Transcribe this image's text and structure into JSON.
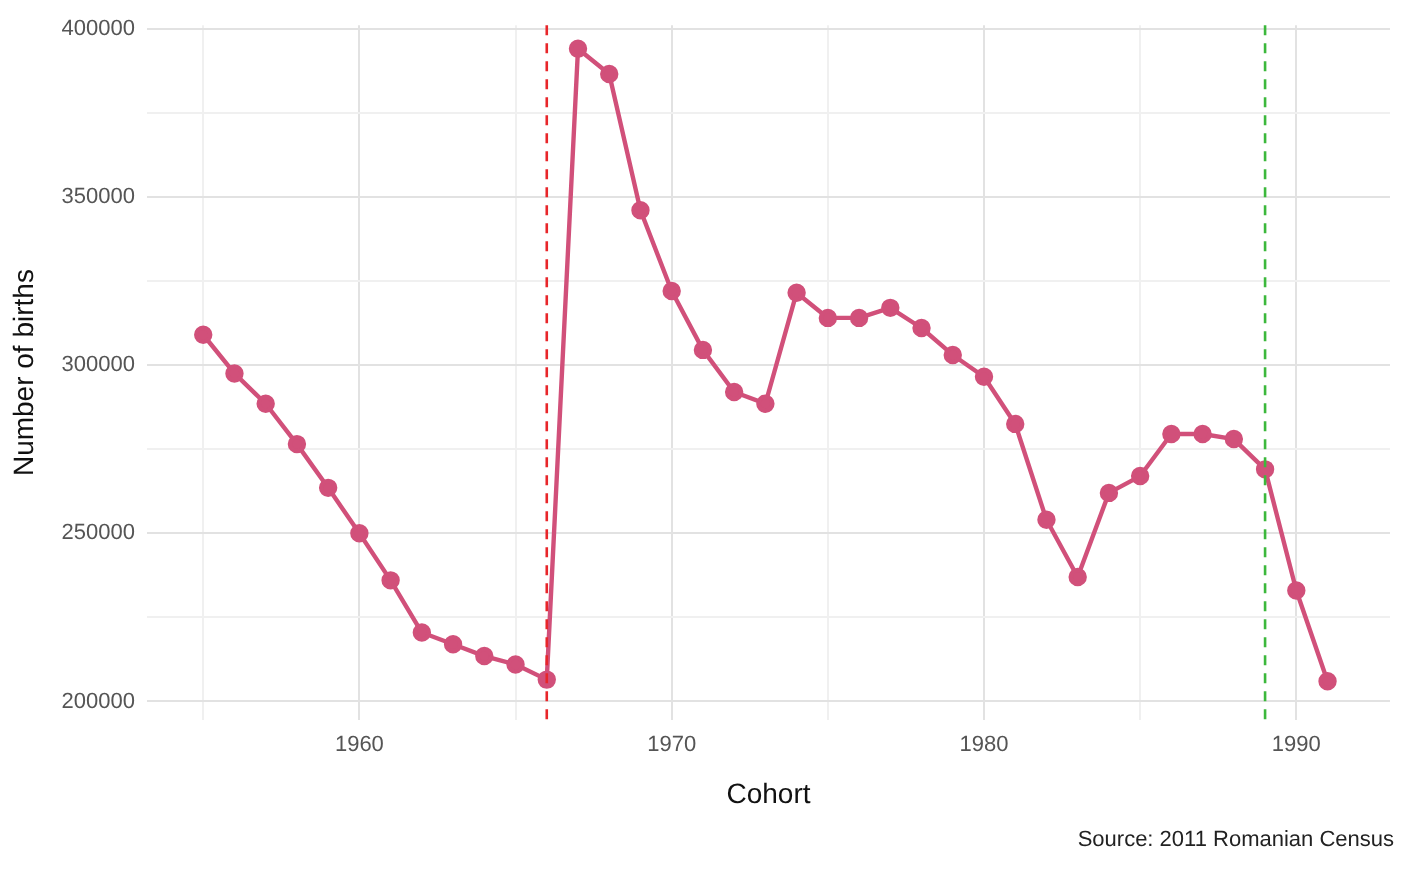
{
  "chart_data": {
    "type": "line",
    "xlabel": "Cohort",
    "ylabel": "Number of births",
    "x": [
      1955,
      1956,
      1957,
      1958,
      1959,
      1960,
      1961,
      1962,
      1963,
      1964,
      1965,
      1966,
      1967,
      1968,
      1969,
      1970,
      1971,
      1972,
      1973,
      1974,
      1975,
      1976,
      1977,
      1978,
      1979,
      1980,
      1981,
      1982,
      1983,
      1984,
      1985,
      1986,
      1987,
      1988,
      1989,
      1990,
      1991
    ],
    "series": [
      {
        "color": "#d1507a",
        "values": [
          309000,
          297500,
          288500,
          276500,
          263500,
          250000,
          236000,
          220500,
          217000,
          213500,
          211000,
          206500,
          394000,
          386500,
          346000,
          322000,
          304500,
          292000,
          288500,
          321500,
          314000,
          314000,
          317000,
          311000,
          303000,
          296500,
          282500,
          254000,
          237000,
          262000,
          267000,
          279500,
          279500,
          278000,
          269000,
          233000,
          206000
        ]
      }
    ],
    "xlim": [
      1953.2,
      1993
    ],
    "xticks": [
      {
        "value": 1955,
        "label": null
      },
      1960,
      {
        "value": 1965,
        "label": null
      },
      1970,
      {
        "value": 1975,
        "label": null
      },
      1980,
      {
        "value": 1985,
        "label": null
      },
      1990
    ],
    "ylim": [
      194500,
      401000
    ],
    "yticks": [
      200000,
      {
        "value": 225000,
        "label": null
      },
      250000,
      {
        "value": 275000,
        "label": null
      },
      300000,
      {
        "value": 325000,
        "label": null
      },
      350000,
      {
        "value": 375000,
        "label": null
      },
      400000
    ],
    "ref_lines": [
      {
        "axis": "x",
        "value": 1966,
        "color": "#e8262a",
        "line_style": "dashed"
      },
      {
        "axis": "x",
        "value": 1989,
        "color": "#3cb83c",
        "line_style": "dashed"
      }
    ],
    "annotations": [
      "Source: 2011 Romanian Census"
    ],
    "grid": true,
    "legend": false,
    "marker": "circle",
    "line_style": "solid"
  }
}
